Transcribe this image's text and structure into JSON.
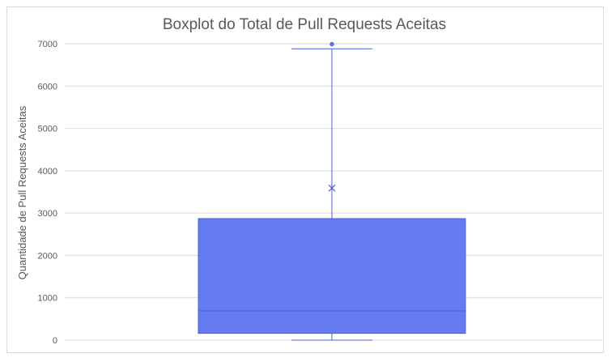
{
  "colors": {
    "box_fill": "#647cf0",
    "box_stroke": "#4b5fd6",
    "gridline": "#d9d9d9",
    "text": "#595959"
  },
  "chart_data": {
    "type": "boxplot",
    "title": "Boxplot do Total de Pull Requests Aceitas",
    "xlabel": "",
    "ylabel": "Quantidade de Pull Requests Aceitas",
    "ylim": [
      0,
      7000
    ],
    "yticks": [
      0,
      1000,
      2000,
      3000,
      4000,
      5000,
      6000,
      7000
    ],
    "grid": true,
    "legend": "none",
    "series": [
      {
        "min": 0,
        "q1": 160,
        "median": 690,
        "q3": 2870,
        "max": 6880,
        "mean": 3590,
        "outliers": [
          6990
        ]
      }
    ]
  }
}
